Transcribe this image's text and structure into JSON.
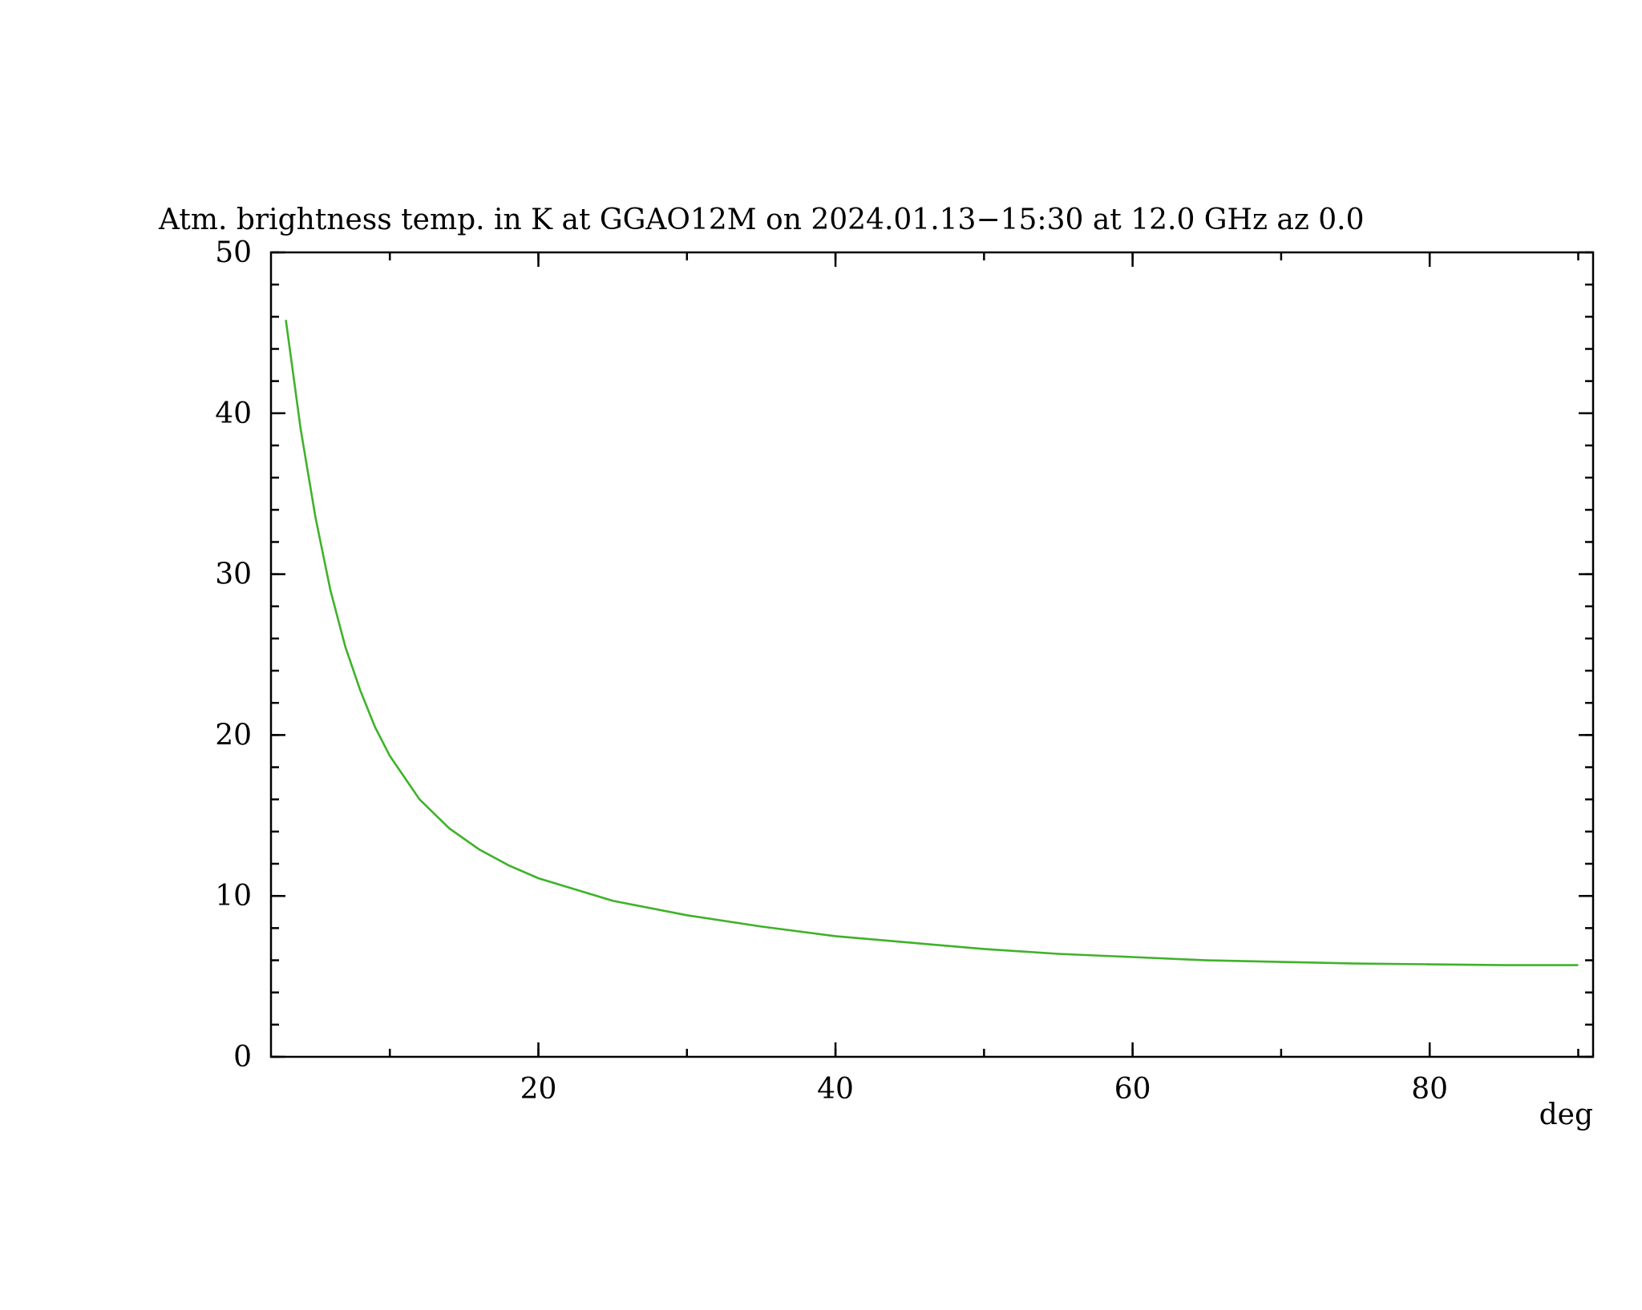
{
  "chart_data": {
    "type": "line",
    "title": "Atm. brightness temp. in K at GGAO12M  on 2024.01.13−15:30 at  12.0 GHz az    0.0",
    "x_label": "deg",
    "x": [
      3,
      4,
      5,
      6,
      7,
      8,
      9,
      10,
      12,
      14,
      16,
      18,
      20,
      25,
      30,
      35,
      40,
      45,
      50,
      55,
      60,
      65,
      70,
      75,
      80,
      85,
      90
    ],
    "series": [
      {
        "color": "#3fb22a",
        "values": [
          45.8,
          39,
          33.5,
          29,
          25.5,
          22.8,
          20.5,
          18.7,
          16,
          14.2,
          12.9,
          11.9,
          11.1,
          9.7,
          8.8,
          8.1,
          7.5,
          7.1,
          6.7,
          6.4,
          6.2,
          6.0,
          5.9,
          5.8,
          5.75,
          5.7,
          5.7
        ]
      }
    ],
    "xlim": [
      2,
      91
    ],
    "xticks": [
      20,
      40,
      60,
      80
    ],
    "ylim": [
      0,
      50
    ],
    "yticks": [
      0,
      10,
      20,
      30,
      40,
      50
    ]
  }
}
